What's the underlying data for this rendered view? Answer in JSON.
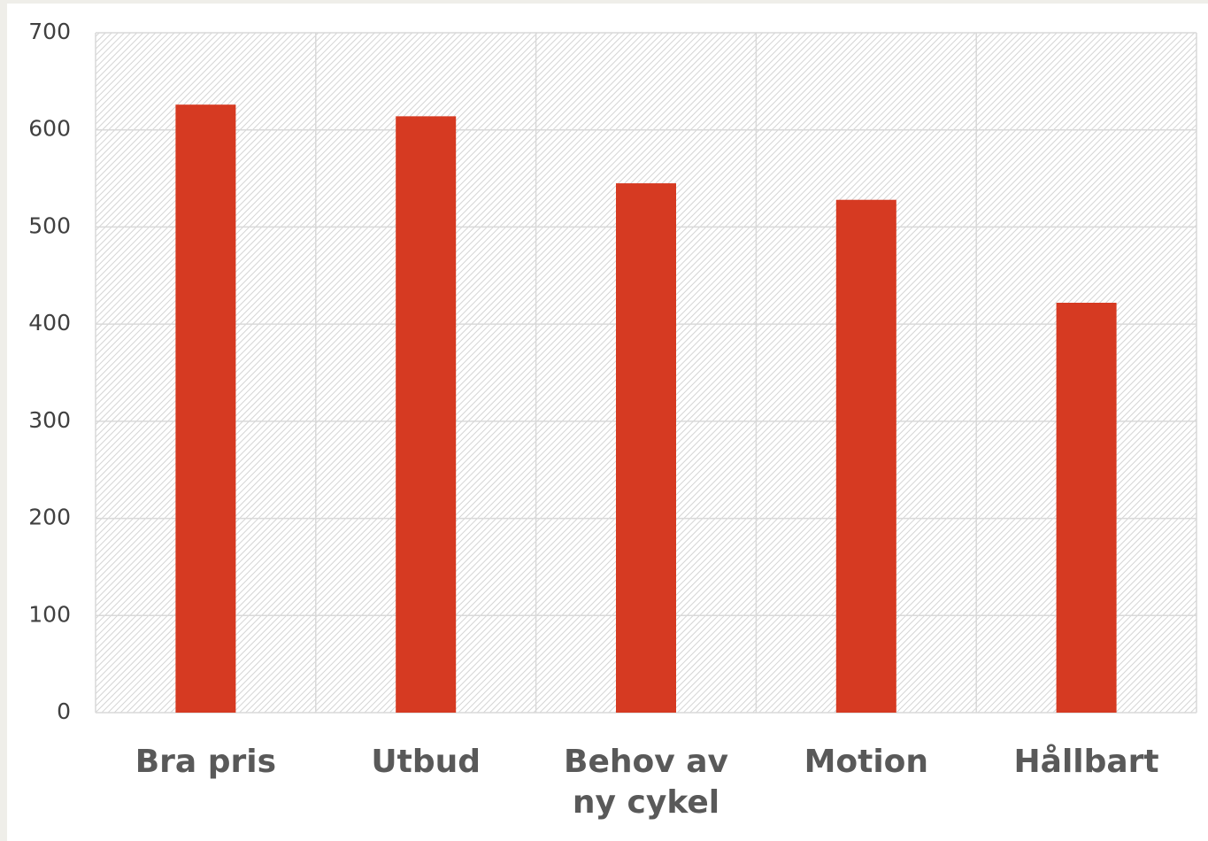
{
  "chart_data": {
    "type": "bar",
    "categories": [
      "Bra pris",
      "Utbud",
      "Behov av ny cykel",
      "Motion",
      "Hållbart"
    ],
    "values": [
      626,
      614,
      545,
      528,
      422
    ],
    "color": "#d63a22",
    "ylim": [
      0,
      700
    ],
    "yticks": [
      0,
      100,
      200,
      300,
      400,
      500,
      600,
      700
    ],
    "grid": true
  }
}
